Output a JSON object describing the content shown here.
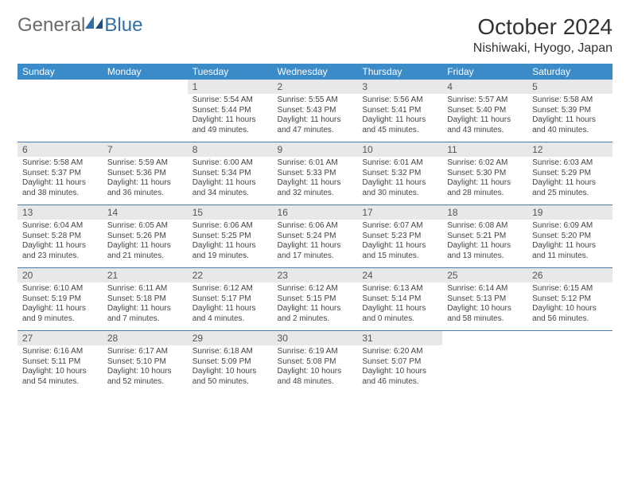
{
  "brand": {
    "part1": "General",
    "part2": "Blue"
  },
  "title": "October 2024",
  "location": "Nishiwaki, Hyogo, Japan",
  "colors": {
    "header_bg": "#3b8bc8",
    "header_text": "#ffffff",
    "daynum_bg": "#e8e8e8",
    "row_border": "#4a7aa6",
    "background": "#ffffff",
    "text": "#333333"
  },
  "weekdays": [
    "Sunday",
    "Monday",
    "Tuesday",
    "Wednesday",
    "Thursday",
    "Friday",
    "Saturday"
  ],
  "weeks": [
    [
      {
        "empty": true
      },
      {
        "empty": true
      },
      {
        "day": "1",
        "sunrise": "Sunrise: 5:54 AM",
        "sunset": "Sunset: 5:44 PM",
        "daylight": "Daylight: 11 hours and 49 minutes."
      },
      {
        "day": "2",
        "sunrise": "Sunrise: 5:55 AM",
        "sunset": "Sunset: 5:43 PM",
        "daylight": "Daylight: 11 hours and 47 minutes."
      },
      {
        "day": "3",
        "sunrise": "Sunrise: 5:56 AM",
        "sunset": "Sunset: 5:41 PM",
        "daylight": "Daylight: 11 hours and 45 minutes."
      },
      {
        "day": "4",
        "sunrise": "Sunrise: 5:57 AM",
        "sunset": "Sunset: 5:40 PM",
        "daylight": "Daylight: 11 hours and 43 minutes."
      },
      {
        "day": "5",
        "sunrise": "Sunrise: 5:58 AM",
        "sunset": "Sunset: 5:39 PM",
        "daylight": "Daylight: 11 hours and 40 minutes."
      }
    ],
    [
      {
        "day": "6",
        "sunrise": "Sunrise: 5:58 AM",
        "sunset": "Sunset: 5:37 PM",
        "daylight": "Daylight: 11 hours and 38 minutes."
      },
      {
        "day": "7",
        "sunrise": "Sunrise: 5:59 AM",
        "sunset": "Sunset: 5:36 PM",
        "daylight": "Daylight: 11 hours and 36 minutes."
      },
      {
        "day": "8",
        "sunrise": "Sunrise: 6:00 AM",
        "sunset": "Sunset: 5:34 PM",
        "daylight": "Daylight: 11 hours and 34 minutes."
      },
      {
        "day": "9",
        "sunrise": "Sunrise: 6:01 AM",
        "sunset": "Sunset: 5:33 PM",
        "daylight": "Daylight: 11 hours and 32 minutes."
      },
      {
        "day": "10",
        "sunrise": "Sunrise: 6:01 AM",
        "sunset": "Sunset: 5:32 PM",
        "daylight": "Daylight: 11 hours and 30 minutes."
      },
      {
        "day": "11",
        "sunrise": "Sunrise: 6:02 AM",
        "sunset": "Sunset: 5:30 PM",
        "daylight": "Daylight: 11 hours and 28 minutes."
      },
      {
        "day": "12",
        "sunrise": "Sunrise: 6:03 AM",
        "sunset": "Sunset: 5:29 PM",
        "daylight": "Daylight: 11 hours and 25 minutes."
      }
    ],
    [
      {
        "day": "13",
        "sunrise": "Sunrise: 6:04 AM",
        "sunset": "Sunset: 5:28 PM",
        "daylight": "Daylight: 11 hours and 23 minutes."
      },
      {
        "day": "14",
        "sunrise": "Sunrise: 6:05 AM",
        "sunset": "Sunset: 5:26 PM",
        "daylight": "Daylight: 11 hours and 21 minutes."
      },
      {
        "day": "15",
        "sunrise": "Sunrise: 6:06 AM",
        "sunset": "Sunset: 5:25 PM",
        "daylight": "Daylight: 11 hours and 19 minutes."
      },
      {
        "day": "16",
        "sunrise": "Sunrise: 6:06 AM",
        "sunset": "Sunset: 5:24 PM",
        "daylight": "Daylight: 11 hours and 17 minutes."
      },
      {
        "day": "17",
        "sunrise": "Sunrise: 6:07 AM",
        "sunset": "Sunset: 5:23 PM",
        "daylight": "Daylight: 11 hours and 15 minutes."
      },
      {
        "day": "18",
        "sunrise": "Sunrise: 6:08 AM",
        "sunset": "Sunset: 5:21 PM",
        "daylight": "Daylight: 11 hours and 13 minutes."
      },
      {
        "day": "19",
        "sunrise": "Sunrise: 6:09 AM",
        "sunset": "Sunset: 5:20 PM",
        "daylight": "Daylight: 11 hours and 11 minutes."
      }
    ],
    [
      {
        "day": "20",
        "sunrise": "Sunrise: 6:10 AM",
        "sunset": "Sunset: 5:19 PM",
        "daylight": "Daylight: 11 hours and 9 minutes."
      },
      {
        "day": "21",
        "sunrise": "Sunrise: 6:11 AM",
        "sunset": "Sunset: 5:18 PM",
        "daylight": "Daylight: 11 hours and 7 minutes."
      },
      {
        "day": "22",
        "sunrise": "Sunrise: 6:12 AM",
        "sunset": "Sunset: 5:17 PM",
        "daylight": "Daylight: 11 hours and 4 minutes."
      },
      {
        "day": "23",
        "sunrise": "Sunrise: 6:12 AM",
        "sunset": "Sunset: 5:15 PM",
        "daylight": "Daylight: 11 hours and 2 minutes."
      },
      {
        "day": "24",
        "sunrise": "Sunrise: 6:13 AM",
        "sunset": "Sunset: 5:14 PM",
        "daylight": "Daylight: 11 hours and 0 minutes."
      },
      {
        "day": "25",
        "sunrise": "Sunrise: 6:14 AM",
        "sunset": "Sunset: 5:13 PM",
        "daylight": "Daylight: 10 hours and 58 minutes."
      },
      {
        "day": "26",
        "sunrise": "Sunrise: 6:15 AM",
        "sunset": "Sunset: 5:12 PM",
        "daylight": "Daylight: 10 hours and 56 minutes."
      }
    ],
    [
      {
        "day": "27",
        "sunrise": "Sunrise: 6:16 AM",
        "sunset": "Sunset: 5:11 PM",
        "daylight": "Daylight: 10 hours and 54 minutes."
      },
      {
        "day": "28",
        "sunrise": "Sunrise: 6:17 AM",
        "sunset": "Sunset: 5:10 PM",
        "daylight": "Daylight: 10 hours and 52 minutes."
      },
      {
        "day": "29",
        "sunrise": "Sunrise: 6:18 AM",
        "sunset": "Sunset: 5:09 PM",
        "daylight": "Daylight: 10 hours and 50 minutes."
      },
      {
        "day": "30",
        "sunrise": "Sunrise: 6:19 AM",
        "sunset": "Sunset: 5:08 PM",
        "daylight": "Daylight: 10 hours and 48 minutes."
      },
      {
        "day": "31",
        "sunrise": "Sunrise: 6:20 AM",
        "sunset": "Sunset: 5:07 PM",
        "daylight": "Daylight: 10 hours and 46 minutes."
      },
      {
        "empty": true
      },
      {
        "empty": true
      }
    ]
  ]
}
